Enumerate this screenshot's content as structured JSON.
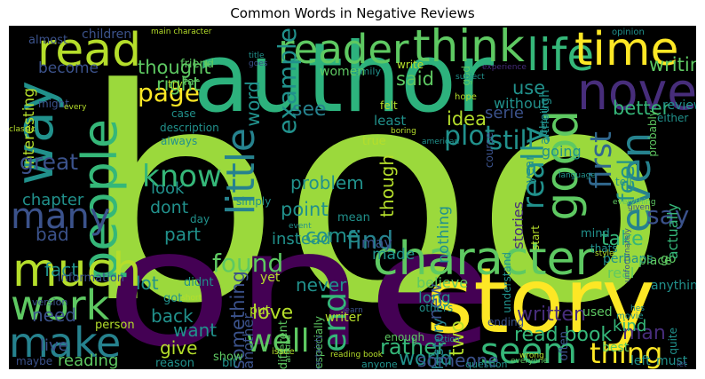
{
  "figure": {
    "title": "Common Words in Negative Reviews",
    "background": "#000000"
  },
  "palette": {
    "c1": "#9bd93c",
    "c2": "#2db27d",
    "c3": "#440154",
    "c4": "#fde725",
    "c5": "#21918c",
    "c6": "#3b528b",
    "c7": "#5ec962",
    "c8": "#b5de2b",
    "c9": "#472d7b",
    "c10": "#35b779",
    "c11": "#26828e",
    "c12": "#31688e"
  },
  "words": [
    {
      "text": "book",
      "color": "c1"
    },
    {
      "text": "one",
      "color": "c3"
    },
    {
      "text": "author",
      "color": "c2"
    },
    {
      "text": "story",
      "color": "c4"
    },
    {
      "text": "read",
      "color": "c8"
    },
    {
      "text": "reader",
      "color": "c7"
    },
    {
      "text": "think",
      "color": "c7"
    },
    {
      "text": "life",
      "color": "c10"
    },
    {
      "text": "time",
      "color": "c4"
    },
    {
      "text": "novel",
      "color": "c9"
    },
    {
      "text": "way",
      "color": "c5"
    },
    {
      "text": "people",
      "color": "c10"
    },
    {
      "text": "good",
      "color": "c7"
    },
    {
      "text": "even",
      "color": "c11"
    },
    {
      "text": "character",
      "color": "c7"
    },
    {
      "text": "much",
      "color": "c8"
    },
    {
      "text": "many",
      "color": "c6"
    },
    {
      "text": "work",
      "color": "c7"
    },
    {
      "text": "make",
      "color": "c11"
    },
    {
      "text": "little",
      "color": "c11"
    },
    {
      "text": "know",
      "color": "c10"
    },
    {
      "text": "page",
      "color": "c4"
    },
    {
      "text": "really",
      "color": "c5"
    },
    {
      "text": "first",
      "color": "c12"
    },
    {
      "text": "say",
      "color": "c6"
    },
    {
      "text": "seem",
      "color": "c10"
    },
    {
      "text": "thing",
      "color": "c4"
    },
    {
      "text": "well",
      "color": "c7"
    },
    {
      "text": "end",
      "color": "c10"
    },
    {
      "text": "found",
      "color": "c7"
    },
    {
      "text": "find",
      "color": "c11"
    },
    {
      "text": "plot",
      "color": "c5"
    },
    {
      "text": "still",
      "color": "c5"
    },
    {
      "text": "example",
      "color": "c5"
    },
    {
      "text": "thought",
      "color": "c7"
    },
    {
      "text": "writing",
      "color": "c7"
    },
    {
      "text": "better",
      "color": "c10"
    },
    {
      "text": "feel",
      "color": "c5"
    },
    {
      "text": "idea",
      "color": "c8"
    },
    {
      "text": "use",
      "color": "c5"
    },
    {
      "text": "word",
      "color": "c5"
    },
    {
      "text": "see",
      "color": "c11"
    },
    {
      "text": "said",
      "color": "c7"
    },
    {
      "text": "right",
      "color": "c7"
    },
    {
      "text": "become",
      "color": "c6"
    },
    {
      "text": "interesting",
      "color": "c8"
    },
    {
      "text": "great",
      "color": "c6"
    },
    {
      "text": "chapter",
      "color": "c5"
    },
    {
      "text": "bad",
      "color": "c6"
    },
    {
      "text": "fact",
      "color": "c5"
    },
    {
      "text": "need",
      "color": "c6"
    },
    {
      "text": "live",
      "color": "c6"
    },
    {
      "text": "reading",
      "color": "c7"
    },
    {
      "text": "lot",
      "color": "c5"
    },
    {
      "text": "back",
      "color": "c5"
    },
    {
      "text": "want",
      "color": "c5"
    },
    {
      "text": "give",
      "color": "c8"
    },
    {
      "text": "love",
      "color": "c8"
    },
    {
      "text": "something",
      "color": "c6"
    },
    {
      "text": "never",
      "color": "c5"
    },
    {
      "text": "come",
      "color": "c5"
    },
    {
      "text": "point",
      "color": "c5"
    },
    {
      "text": "dont",
      "color": "c5"
    },
    {
      "text": "part",
      "color": "c5"
    },
    {
      "text": "look",
      "color": "c5"
    },
    {
      "text": "problem",
      "color": "c5"
    },
    {
      "text": "instead",
      "color": "c5"
    },
    {
      "text": "though",
      "color": "c8"
    },
    {
      "text": "nothing",
      "color": "c5"
    },
    {
      "text": "take",
      "color": "c10"
    },
    {
      "text": "made",
      "color": "c5"
    },
    {
      "text": "new",
      "color": "c6"
    },
    {
      "text": "written",
      "color": "c9"
    },
    {
      "text": "read book",
      "color": "c10"
    },
    {
      "text": "rather",
      "color": "c10"
    },
    {
      "text": "world",
      "color": "c5"
    },
    {
      "text": "man",
      "color": "c9"
    },
    {
      "text": "kind",
      "color": "c10"
    },
    {
      "text": "history",
      "color": "c11"
    },
    {
      "text": "two",
      "color": "c8"
    },
    {
      "text": "someone",
      "color": "c6"
    },
    {
      "text": "serie",
      "color": "c6"
    },
    {
      "text": "may",
      "color": "c6"
    },
    {
      "text": "believe",
      "color": "c7"
    },
    {
      "text": "long",
      "color": "c5"
    },
    {
      "text": "review",
      "color": "c5"
    },
    {
      "text": "without",
      "color": "c5"
    },
    {
      "text": "going",
      "color": "c5"
    },
    {
      "text": "year",
      "color": "c5"
    },
    {
      "text": "stories",
      "color": "c9"
    },
    {
      "text": "go",
      "color": "c7"
    },
    {
      "text": "actually",
      "color": "c10"
    },
    {
      "text": "perhaps",
      "color": "c5"
    },
    {
      "text": "real",
      "color": "c7"
    },
    {
      "text": "anything",
      "color": "c5"
    },
    {
      "text": "place",
      "color": "c7"
    },
    {
      "text": "quite",
      "color": "c5"
    },
    {
      "text": "must",
      "color": "c5"
    },
    {
      "text": "left",
      "color": "c5"
    },
    {
      "text": "best",
      "color": "c7"
    },
    {
      "text": "used",
      "color": "c7"
    },
    {
      "text": "writer",
      "color": "c8"
    },
    {
      "text": "put",
      "color": "c8"
    },
    {
      "text": "yet",
      "color": "c8"
    },
    {
      "text": "another",
      "color": "c6"
    },
    {
      "text": "different",
      "color": "c7"
    },
    {
      "text": "mean",
      "color": "c5"
    },
    {
      "text": "didnt",
      "color": "c5"
    },
    {
      "text": "got",
      "color": "c5"
    },
    {
      "text": "person",
      "color": "c8"
    },
    {
      "text": "information",
      "color": "c6"
    },
    {
      "text": "version",
      "color": "c6"
    },
    {
      "text": "maybe",
      "color": "c6"
    },
    {
      "text": "show",
      "color": "c7"
    },
    {
      "text": "reason",
      "color": "c5"
    },
    {
      "text": "bit",
      "color": "c5"
    },
    {
      "text": "especially",
      "color": "c7"
    },
    {
      "text": "anyone",
      "color": "c5"
    },
    {
      "text": "question",
      "color": "c5"
    },
    {
      "text": "enough",
      "color": "c7"
    },
    {
      "text": "ending",
      "color": "c6"
    },
    {
      "text": "often",
      "color": "c6"
    },
    {
      "text": "understand",
      "color": "c5"
    },
    {
      "text": "start",
      "color": "c8"
    },
    {
      "text": "mind",
      "color": "c5"
    },
    {
      "text": "thats",
      "color": "c5"
    },
    {
      "text": "tell",
      "color": "c5"
    },
    {
      "text": "always",
      "color": "c5"
    },
    {
      "text": "day",
      "color": "c5"
    },
    {
      "text": "simply",
      "color": "c5"
    },
    {
      "text": "case",
      "color": "c5"
    },
    {
      "text": "least",
      "color": "c5"
    },
    {
      "text": "true",
      "color": "c8"
    },
    {
      "text": "felt",
      "color": "c8"
    },
    {
      "text": "although",
      "color": "c5"
    },
    {
      "text": "course",
      "color": "c6"
    },
    {
      "text": "detail",
      "color": "c5"
    },
    {
      "text": "probably",
      "color": "c7"
    },
    {
      "text": "either",
      "color": "c5"
    },
    {
      "text": "almost",
      "color": "c6"
    },
    {
      "text": "children",
      "color": "c6"
    },
    {
      "text": "friend",
      "color": "c7"
    },
    {
      "text": "might",
      "color": "c6"
    },
    {
      "text": "description",
      "color": "c5"
    },
    {
      "text": "family",
      "color": "c5"
    },
    {
      "text": "women",
      "color": "c7"
    },
    {
      "text": "write",
      "color": "c8"
    },
    {
      "text": "god",
      "color": "c7"
    },
    {
      "text": "experience",
      "color": "c9"
    },
    {
      "text": "opinion",
      "color": "c5"
    },
    {
      "text": "hope",
      "color": "c8"
    },
    {
      "text": "boring",
      "color": "c8"
    },
    {
      "text": "main character",
      "color": "c8"
    },
    {
      "text": "subject",
      "color": "c5"
    },
    {
      "text": "language",
      "color": "c5"
    },
    {
      "text": "every",
      "color": "c8"
    },
    {
      "text": "far",
      "color": "c7"
    },
    {
      "text": "try",
      "color": "c8"
    },
    {
      "text": "classic",
      "color": "c8"
    },
    {
      "text": "american",
      "color": "c5"
    },
    {
      "text": "given",
      "color": "c6"
    },
    {
      "text": "everything",
      "color": "c7"
    },
    {
      "text": "movie",
      "color": "c5"
    },
    {
      "text": "others",
      "color": "c5"
    },
    {
      "text": "issue",
      "color": "c8"
    },
    {
      "text": "short",
      "color": "c8"
    },
    {
      "text": "reading book",
      "color": "c8"
    },
    {
      "text": "everyone",
      "color": "c7"
    },
    {
      "text": "wrong",
      "color": "c8"
    },
    {
      "text": "action",
      "color": "c5"
    },
    {
      "text": "learn",
      "color": "c6"
    },
    {
      "text": "around",
      "color": "c7"
    },
    {
      "text": "style",
      "color": "c8"
    },
    {
      "text": "event",
      "color": "c5"
    },
    {
      "text": "unfortunately",
      "color": "c6"
    },
    {
      "text": "hes",
      "color": "c5"
    },
    {
      "text": "let",
      "color": "c6"
    },
    {
      "text": "goes",
      "color": "c6"
    },
    {
      "text": "title",
      "color": "c5"
    },
    {
      "text": "certainly",
      "color": "c6"
    }
  ]
}
